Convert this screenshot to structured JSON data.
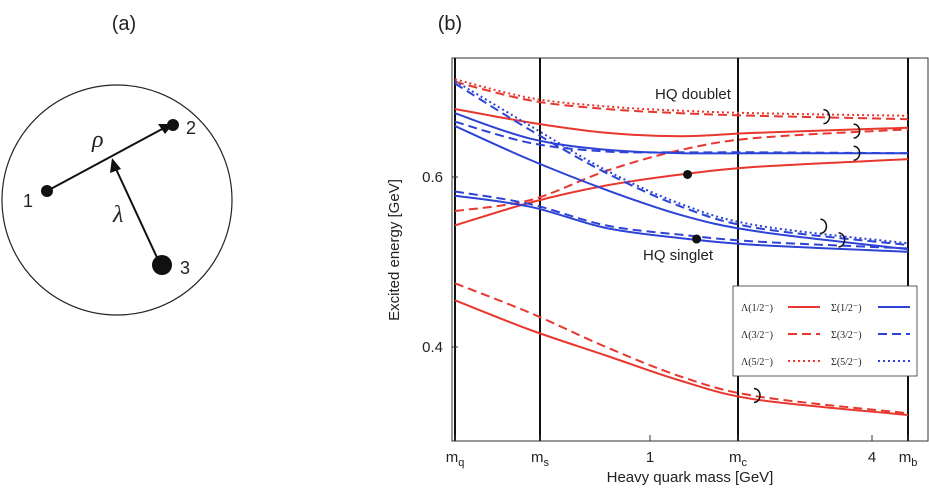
{
  "panel_a": {
    "label": "(a)",
    "nodes": [
      {
        "id": "1",
        "label": "1"
      },
      {
        "id": "2",
        "label": "2"
      },
      {
        "id": "3",
        "label": "3"
      }
    ],
    "rho_label": "ρ",
    "lambda_label": "λ"
  },
  "panel_b": {
    "label": "(b)",
    "annotations": {
      "doublet": "HQ doublet",
      "singlet": "HQ singlet"
    }
  },
  "chart_data": {
    "type": "line",
    "xlabel": "Heavy quark mass [GeV]",
    "ylabel": "Excited energy [GeV]",
    "x_scale": "log",
    "x_ticks": [
      {
        "label": "m",
        "sub": "q"
      },
      {
        "label": "m",
        "sub": "s"
      },
      {
        "label": "1",
        "sub": ""
      },
      {
        "label": "m",
        "sub": "c"
      },
      {
        "label": "4",
        "sub": ""
      },
      {
        "label": "m",
        "sub": "b"
      }
    ],
    "y_ticks": [
      "0.6",
      "0.4"
    ],
    "vertical_lines_at": [
      "m_q",
      "m_s",
      "m_c",
      "m_b"
    ],
    "legend": {
      "placement": "bottom-right",
      "entries": [
        {
          "name": "Λ(1/2⁻)",
          "color": "#e8372f",
          "style": "solid"
        },
        {
          "name": "Σ(1/2⁻)",
          "color": "#2d43d6",
          "style": "solid"
        },
        {
          "name": "Λ(3/2⁻)",
          "color": "#e8372f",
          "style": "dashed"
        },
        {
          "name": "Σ(3/2⁻)",
          "color": "#2d43d6",
          "style": "dashed"
        },
        {
          "name": "Λ(5/2⁻)",
          "color": "#e8372f",
          "style": "dotted"
        },
        {
          "name": "Σ(5/2⁻)",
          "color": "#2d43d6",
          "style": "dotted"
        }
      ]
    },
    "series": [
      {
        "color": "#e8372f",
        "style": "solid",
        "points": [
          [
            0,
            0.455
          ],
          [
            0.25,
            0.42
          ],
          [
            0.5,
            0.39
          ],
          [
            0.75,
            0.36
          ],
          [
            1.0,
            0.338
          ],
          [
            1.5,
            0.32
          ]
        ]
      },
      {
        "color": "#e8372f",
        "style": "dashed",
        "points": [
          [
            0,
            0.475
          ],
          [
            0.25,
            0.44
          ],
          [
            0.5,
            0.4
          ],
          [
            0.75,
            0.365
          ],
          [
            1.0,
            0.342
          ],
          [
            1.5,
            0.322
          ]
        ]
      },
      {
        "color": "#e8372f",
        "style": "solid",
        "points": [
          [
            0,
            0.543
          ],
          [
            0.25,
            0.57
          ],
          [
            0.5,
            0.59
          ],
          [
            0.75,
            0.603
          ],
          [
            1.0,
            0.612
          ],
          [
            1.5,
            0.621
          ]
        ]
      },
      {
        "color": "#e8372f",
        "style": "dashed",
        "points": [
          [
            0,
            0.56
          ],
          [
            0.25,
            0.573
          ],
          [
            0.5,
            0.607
          ],
          [
            0.75,
            0.632
          ],
          [
            1.0,
            0.646
          ],
          [
            1.5,
            0.656
          ]
        ]
      },
      {
        "color": "#e8372f",
        "style": "solid",
        "points": [
          [
            0,
            0.68
          ],
          [
            0.25,
            0.664
          ],
          [
            0.5,
            0.652
          ],
          [
            0.75,
            0.648
          ],
          [
            1.0,
            0.652
          ],
          [
            1.5,
            0.658
          ]
        ]
      },
      {
        "color": "#e8372f",
        "style": "dashed",
        "points": [
          [
            0,
            0.712
          ],
          [
            0.25,
            0.69
          ],
          [
            0.5,
            0.68
          ],
          [
            0.75,
            0.675
          ],
          [
            1.0,
            0.672
          ],
          [
            1.5,
            0.668
          ]
        ]
      },
      {
        "color": "#e8372f",
        "style": "dotted",
        "points": [
          [
            0,
            0.715
          ],
          [
            0.25,
            0.693
          ],
          [
            0.5,
            0.683
          ],
          [
            0.75,
            0.678
          ],
          [
            1.0,
            0.675
          ],
          [
            1.5,
            0.672
          ]
        ]
      },
      {
        "color": "#2d43d6",
        "style": "solid",
        "points": [
          [
            0,
            0.578
          ],
          [
            0.25,
            0.565
          ],
          [
            0.5,
            0.54
          ],
          [
            0.75,
            0.528
          ],
          [
            1.0,
            0.52
          ],
          [
            1.5,
            0.512
          ]
        ]
      },
      {
        "color": "#2d43d6",
        "style": "dashed",
        "points": [
          [
            0,
            0.583
          ],
          [
            0.25,
            0.568
          ],
          [
            0.5,
            0.543
          ],
          [
            0.75,
            0.532
          ],
          [
            1.0,
            0.524
          ],
          [
            1.5,
            0.516
          ]
        ]
      },
      {
        "color": "#2d43d6",
        "style": "solid",
        "points": [
          [
            0,
            0.66
          ],
          [
            0.25,
            0.62
          ],
          [
            0.5,
            0.585
          ],
          [
            0.75,
            0.555
          ],
          [
            1.0,
            0.536
          ],
          [
            1.5,
            0.515
          ]
        ]
      },
      {
        "color": "#2d43d6",
        "style": "solid",
        "points": [
          [
            0,
            0.675
          ],
          [
            0.25,
            0.645
          ],
          [
            0.5,
            0.632
          ],
          [
            0.75,
            0.628
          ],
          [
            1.0,
            0.628
          ],
          [
            1.5,
            0.628
          ]
        ]
      },
      {
        "color": "#2d43d6",
        "style": "dashed",
        "points": [
          [
            0,
            0.665
          ],
          [
            0.25,
            0.64
          ],
          [
            0.5,
            0.63
          ],
          [
            0.75,
            0.629
          ],
          [
            1.0,
            0.629
          ],
          [
            1.5,
            0.628
          ]
        ]
      },
      {
        "color": "#2d43d6",
        "style": "dashed",
        "points": [
          [
            0,
            0.71
          ],
          [
            0.25,
            0.655
          ],
          [
            0.5,
            0.605
          ],
          [
            0.75,
            0.565
          ],
          [
            1.0,
            0.54
          ],
          [
            1.5,
            0.52
          ]
        ]
      },
      {
        "color": "#2d43d6",
        "style": "dotted",
        "points": [
          [
            0,
            0.713
          ],
          [
            0.25,
            0.66
          ],
          [
            0.5,
            0.608
          ],
          [
            0.75,
            0.568
          ],
          [
            1.0,
            0.543
          ],
          [
            1.5,
            0.522
          ]
        ]
      }
    ],
    "markers": [
      {
        "kind": "dot",
        "x": 0.77,
        "y": 0.603
      },
      {
        "kind": "dot",
        "x": 0.8,
        "y": 0.527
      },
      {
        "kind": "bracket",
        "x": 1.23,
        "y": 0.671
      },
      {
        "kind": "bracket",
        "x": 1.33,
        "y": 0.654
      },
      {
        "kind": "bracket",
        "x": 1.33,
        "y": 0.628
      },
      {
        "kind": "bracket",
        "x": 1.22,
        "y": 0.542
      },
      {
        "kind": "bracket",
        "x": 1.28,
        "y": 0.526
      },
      {
        "kind": "bracket",
        "x": 1.0,
        "y": 0.343
      }
    ]
  }
}
